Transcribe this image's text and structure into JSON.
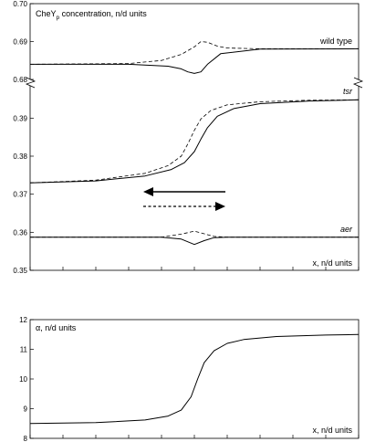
{
  "chart_data": [
    {
      "type": "line",
      "ylabel_main": "CheY",
      "ylabel_sub": "p",
      "ylabel_rest": " concentration, n/d units",
      "xlabel": "x, n/d units",
      "segments": [
        {
          "ylim": [
            0.68,
            0.7
          ],
          "ticks": [
            0.68,
            0.69,
            0.7
          ],
          "tick_labels": [
            "0.68",
            "0.69",
            "0.70"
          ],
          "label": "wild type",
          "series": [
            {
              "style": "solid",
              "x": [
                0,
                0.3,
                0.42,
                0.46,
                0.48,
                0.5,
                0.52,
                0.54,
                0.58,
                0.7,
                1
              ],
              "y": [
                0.684,
                0.684,
                0.6835,
                0.6828,
                0.682,
                0.6816,
                0.682,
                0.684,
                0.6868,
                0.688,
                0.6881
              ]
            },
            {
              "style": "dashed",
              "x": [
                0,
                0.3,
                0.4,
                0.46,
                0.5,
                0.52,
                0.54,
                0.57,
                0.6,
                0.7,
                1
              ],
              "y": [
                0.684,
                0.6842,
                0.685,
                0.6866,
                0.6886,
                0.69,
                0.6898,
                0.6888,
                0.6883,
                0.6881,
                0.6881
              ]
            }
          ]
        },
        {
          "ylim": [
            0.35,
            0.398
          ],
          "ticks": [
            0.35,
            0.36,
            0.37,
            0.38,
            0.39
          ],
          "tick_labels": [
            "0.35",
            "0.36",
            "0.37",
            "0.38",
            "0.39"
          ],
          "label": "tsr",
          "series": [
            {
              "style": "solid",
              "x": [
                0,
                0.2,
                0.35,
                0.43,
                0.47,
                0.5,
                0.52,
                0.54,
                0.57,
                0.62,
                0.7,
                0.85,
                1
              ],
              "y": [
                0.373,
                0.3735,
                0.3748,
                0.3765,
                0.3783,
                0.3812,
                0.3845,
                0.3875,
                0.3905,
                0.3925,
                0.3938,
                0.3945,
                0.3948
              ]
            },
            {
              "style": "dashed",
              "x": [
                0,
                0.2,
                0.35,
                0.42,
                0.46,
                0.48,
                0.5,
                0.52,
                0.55,
                0.6,
                0.7,
                0.85,
                1
              ],
              "y": [
                0.373,
                0.3737,
                0.3755,
                0.3775,
                0.38,
                0.3832,
                0.3868,
                0.3898,
                0.392,
                0.3935,
                0.3943,
                0.3947,
                0.3948
              ]
            }
          ]
        },
        {
          "label": "aer",
          "series": [
            {
              "style": "solid",
              "x": [
                0,
                0.4,
                0.46,
                0.5,
                0.53,
                0.56,
                0.6,
                1
              ],
              "y": [
                0.3587,
                0.3587,
                0.3582,
                0.3568,
                0.3578,
                0.3586,
                0.3587,
                0.3587
              ]
            },
            {
              "style": "dashed",
              "x": [
                0,
                0.4,
                0.46,
                0.5,
                0.53,
                0.56,
                0.6,
                1
              ],
              "y": [
                0.3587,
                0.3587,
                0.3595,
                0.3603,
                0.3596,
                0.3589,
                0.3587,
                0.3587
              ]
            }
          ]
        }
      ],
      "xlim": [
        0,
        1
      ],
      "grid": false
    },
    {
      "type": "line",
      "ylabel": "α, n/d units",
      "xlabel": "x, n/d units",
      "ylim": [
        8,
        12
      ],
      "ticks": [
        8,
        9,
        10,
        11,
        12
      ],
      "tick_labels": [
        "8",
        "9",
        "10",
        "11",
        "12"
      ],
      "xlim": [
        0,
        1
      ],
      "grid": false,
      "series": [
        {
          "style": "solid",
          "x": [
            0,
            0.2,
            0.35,
            0.42,
            0.46,
            0.49,
            0.51,
            0.53,
            0.56,
            0.6,
            0.65,
            0.75,
            0.9,
            1
          ],
          "y": [
            8.5,
            8.53,
            8.62,
            8.75,
            8.95,
            9.4,
            10.0,
            10.55,
            10.95,
            11.2,
            11.33,
            11.43,
            11.48,
            11.5
          ]
        }
      ]
    }
  ]
}
